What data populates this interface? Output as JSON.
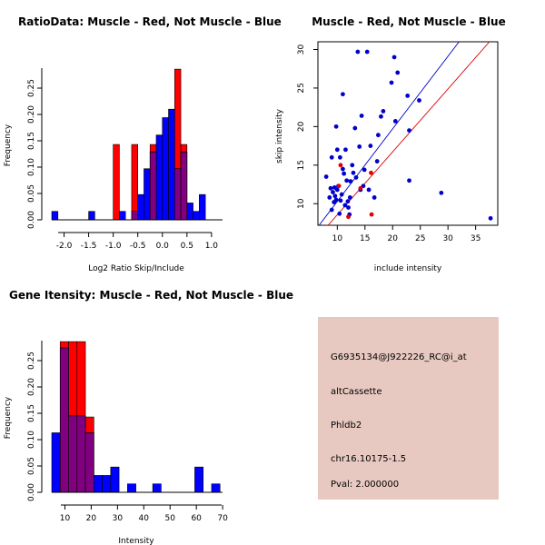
{
  "chart_data": [
    {
      "id": "ratio",
      "type": "bar",
      "title": "RatioData: Muscle - Red, Not Muscle - Blue",
      "xlabel": "Log2 Ratio Skip/Include",
      "ylabel": "Frequency",
      "xlim": [
        -2.25,
        1.15
      ],
      "ylim": [
        0,
        0.3
      ],
      "xticks": [
        -2.0,
        -1.5,
        -1.0,
        -0.5,
        0.0,
        0.5,
        1.0
      ],
      "xtick_labels": [
        "-2.0",
        "-1.5",
        "-1.0",
        "-0.5",
        "0.0",
        "0.5",
        "1.0"
      ],
      "yticks": [
        0,
        0.05,
        0.1,
        0.15,
        0.2,
        0.25
      ],
      "ytick_labels": [
        "0.00",
        "0.05",
        "0.10",
        "0.15",
        "0.20",
        "0.25"
      ],
      "bin_width": 0.125,
      "series": [
        {
          "name": "Muscle",
          "color": "#FF0000",
          "bins": [
            {
              "x": -1.0,
              "v": 0.143
            },
            {
              "x": -0.625,
              "v": 0.143
            },
            {
              "x": -0.25,
              "v": 0.143
            },
            {
              "x": 0.25,
              "v": 0.286
            },
            {
              "x": 0.375,
              "v": 0.143
            }
          ]
        },
        {
          "name": "Not Muscle",
          "color": "#0000FF",
          "bins": [
            {
              "x": -2.25,
              "v": 0.016
            },
            {
              "x": -1.5,
              "v": 0.016
            },
            {
              "x": -0.875,
              "v": 0.016
            },
            {
              "x": -0.625,
              "v": 0.016
            },
            {
              "x": -0.5,
              "v": 0.048
            },
            {
              "x": -0.375,
              "v": 0.097
            },
            {
              "x": -0.25,
              "v": 0.129
            },
            {
              "x": -0.125,
              "v": 0.161
            },
            {
              "x": 0.0,
              "v": 0.194
            },
            {
              "x": 0.125,
              "v": 0.21
            },
            {
              "x": 0.25,
              "v": 0.097
            },
            {
              "x": 0.375,
              "v": 0.129
            },
            {
              "x": 0.5,
              "v": 0.032
            },
            {
              "x": 0.625,
              "v": 0.016
            },
            {
              "x": 0.75,
              "v": 0.048
            }
          ]
        }
      ],
      "overlap_color": "#800080"
    },
    {
      "id": "scatter",
      "type": "scatter",
      "title": "Muscle - Red, Not Muscle - Blue",
      "xlabel": "include intensity",
      "ylabel": "skip intensity",
      "xlim": [
        6.5,
        39
      ],
      "ylim": [
        7.2,
        31
      ],
      "xticks": [
        10,
        15,
        20,
        25,
        30,
        35
      ],
      "yticks": [
        10,
        15,
        20,
        25,
        30
      ],
      "series": [
        {
          "name": "Not Muscle",
          "color": "#0000CC",
          "points": [
            [
              8.0,
              13.5
            ],
            [
              8.6,
              10.8
            ],
            [
              8.8,
              12.0
            ],
            [
              9.0,
              9.2
            ],
            [
              9.2,
              11.5
            ],
            [
              9.4,
              10.2
            ],
            [
              9.5,
              12.1
            ],
            [
              9.6,
              11.0
            ],
            [
              9.8,
              10.5
            ],
            [
              10.0,
              11.8
            ],
            [
              10.2,
              12.3
            ],
            [
              10.4,
              8.7
            ],
            [
              10.5,
              16.0
            ],
            [
              10.6,
              10.4
            ],
            [
              10.8,
              11.2
            ],
            [
              11.0,
              24.2
            ],
            [
              11.2,
              13.9
            ],
            [
              11.4,
              9.8
            ],
            [
              11.5,
              17.0
            ],
            [
              11.7,
              13.0
            ],
            [
              11.9,
              10.3
            ],
            [
              12.0,
              9.5
            ],
            [
              12.2,
              8.6
            ],
            [
              12.4,
              12.9
            ],
            [
              12.7,
              15.0
            ],
            [
              12.9,
              14.0
            ],
            [
              13.2,
              19.8
            ],
            [
              13.4,
              13.4
            ],
            [
              13.7,
              29.7
            ],
            [
              14.0,
              17.4
            ],
            [
              14.2,
              11.8
            ],
            [
              14.4,
              21.4
            ],
            [
              14.7,
              12.3
            ],
            [
              14.9,
              14.4
            ],
            [
              15.4,
              29.7
            ],
            [
              15.7,
              11.8
            ],
            [
              16.0,
              17.5
            ],
            [
              16.7,
              10.8
            ],
            [
              17.2,
              15.5
            ],
            [
              17.4,
              18.9
            ],
            [
              17.9,
              21.3
            ],
            [
              18.3,
              22.0
            ],
            [
              19.8,
              25.7
            ],
            [
              20.3,
              29.0
            ],
            [
              20.5,
              20.7
            ],
            [
              20.9,
              27.0
            ],
            [
              22.7,
              24.0
            ],
            [
              23.0,
              19.5
            ],
            [
              23.0,
              13.0
            ],
            [
              24.8,
              23.4
            ],
            [
              28.8,
              11.4
            ],
            [
              37.7,
              8.1
            ],
            [
              9.0,
              16.0
            ],
            [
              9.8,
              20.0
            ],
            [
              10.0,
              17.0
            ],
            [
              11.0,
              14.5
            ],
            [
              12.3,
              10.8
            ]
          ]
        },
        {
          "name": "Muscle",
          "color": "#E00000",
          "points": [
            [
              10.3,
              12.3
            ],
            [
              10.6,
              15.0
            ],
            [
              12.0,
              8.3
            ],
            [
              14.2,
              12.0
            ],
            [
              16.1,
              14.0
            ],
            [
              16.2,
              8.6
            ]
          ]
        }
      ],
      "lines": [
        {
          "name": "Not Muscle fit",
          "color": "#0000CC",
          "x0": 6.5,
          "y0": 7.0,
          "x1": 32.0,
          "y1": 31.0
        },
        {
          "name": "Muscle fit",
          "color": "#E00000",
          "x0": 6.5,
          "y0": 5.7,
          "x1": 37.5,
          "y1": 31.0
        }
      ]
    },
    {
      "id": "intensity",
      "type": "bar",
      "title": "Gene Itensity: Muscle - Red, Not Muscle - Blue",
      "xlabel": "Intensity",
      "ylabel": "Frequency",
      "xlim": [
        5,
        71
      ],
      "ylim": [
        0,
        0.3
      ],
      "xticks": [
        10,
        20,
        30,
        40,
        50,
        60,
        70
      ],
      "yticks": [
        0,
        0.05,
        0.1,
        0.15,
        0.2,
        0.25
      ],
      "ytick_labels": [
        "0.00",
        "0.05",
        "0.10",
        "0.15",
        "0.20",
        "0.25"
      ],
      "bin_width": 3.2,
      "series": [
        {
          "name": "Muscle",
          "color": "#FF0000",
          "bins": [
            {
              "x": 8.2,
              "v": 0.286
            },
            {
              "x": 11.4,
              "v": 0.286
            },
            {
              "x": 14.6,
              "v": 0.286
            },
            {
              "x": 17.8,
              "v": 0.143
            }
          ]
        },
        {
          "name": "Not Muscle",
          "color": "#0000FF",
          "bins": [
            {
              "x": 5.0,
              "v": 0.113
            },
            {
              "x": 8.2,
              "v": 0.274
            },
            {
              "x": 11.4,
              "v": 0.145
            },
            {
              "x": 14.6,
              "v": 0.145
            },
            {
              "x": 17.8,
              "v": 0.113
            },
            {
              "x": 21.0,
              "v": 0.032
            },
            {
              "x": 24.2,
              "v": 0.032
            },
            {
              "x": 27.4,
              "v": 0.048
            },
            {
              "x": 33.8,
              "v": 0.016
            },
            {
              "x": 43.4,
              "v": 0.016
            },
            {
              "x": 59.4,
              "v": 0.048
            },
            {
              "x": 65.8,
              "v": 0.016
            }
          ]
        }
      ],
      "overlap_color": "#800080"
    }
  ],
  "info_panel": {
    "background": "#E8C9C1",
    "probe_id": "G6935134@J922226_RC@i_at",
    "event_type": "altCassette",
    "gene": "Phldb2",
    "location": "chr16.10175-1.5",
    "pval": "Pval: 2.000000",
    "pval_color": "#AA0000"
  }
}
